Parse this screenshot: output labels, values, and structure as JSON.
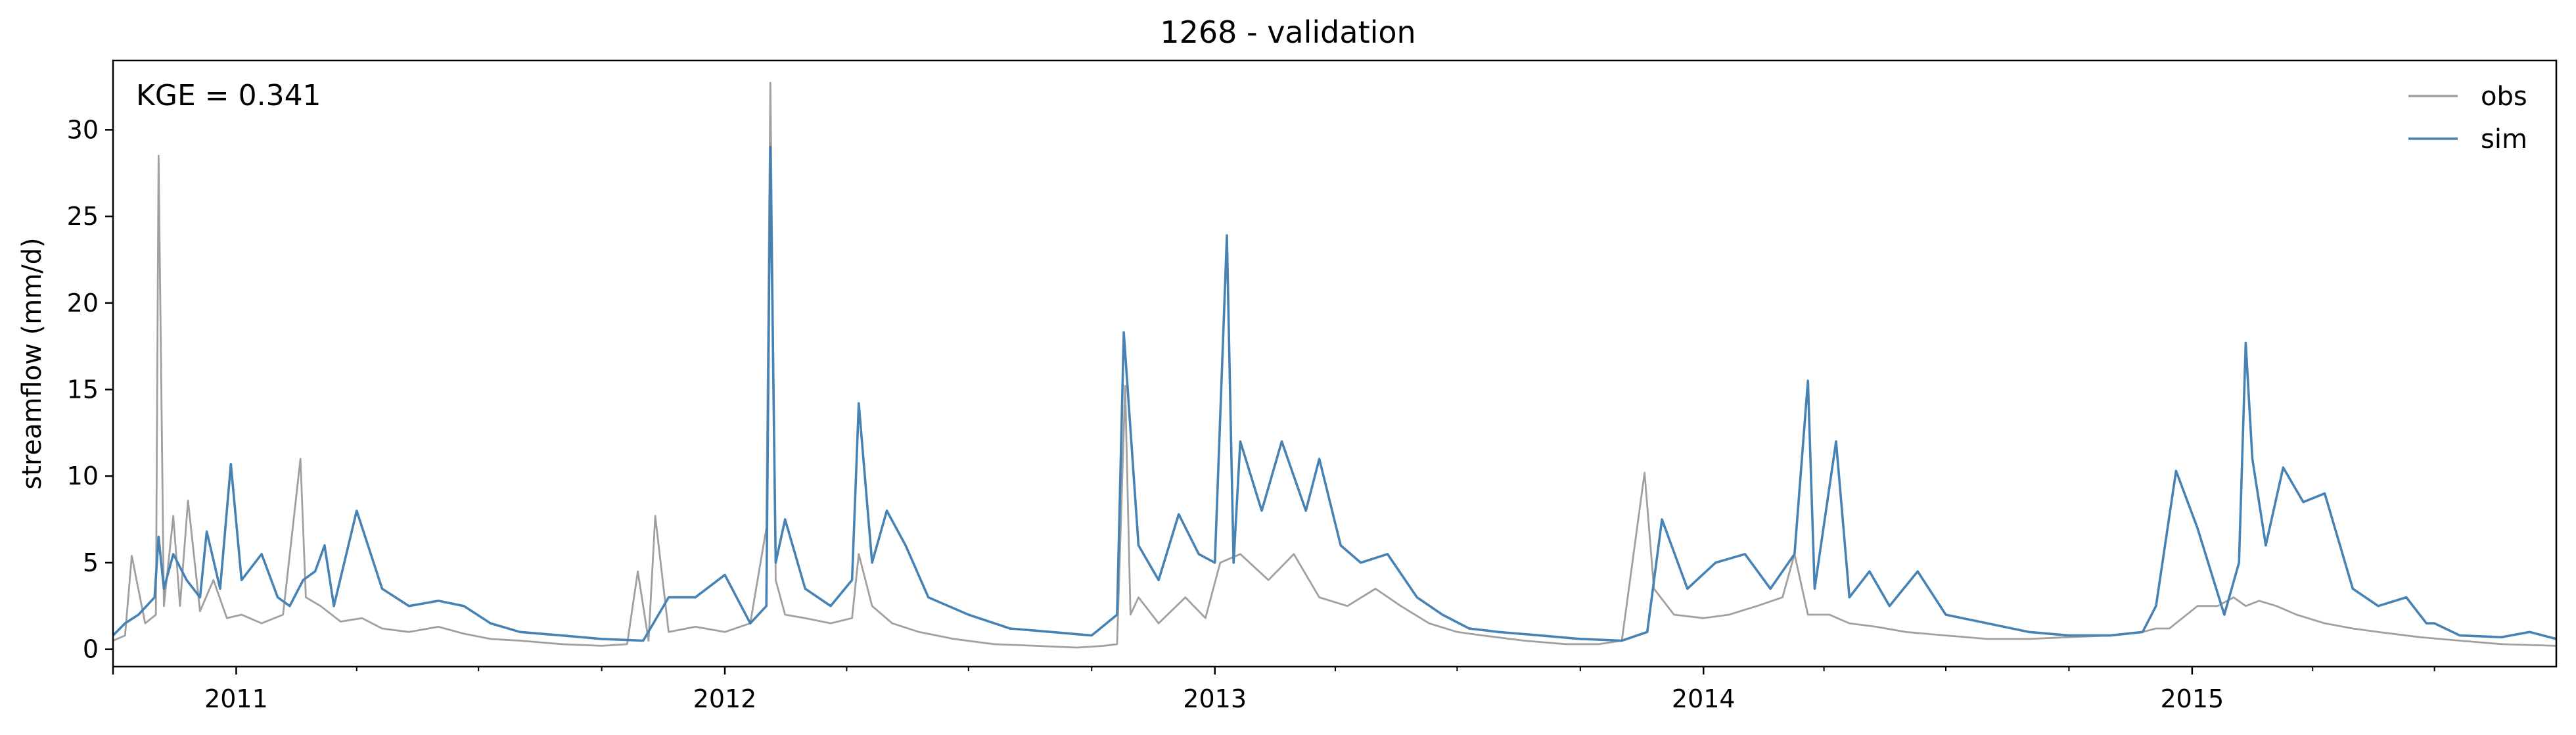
{
  "chart_data": {
    "type": "line",
    "title": "1268 - validation",
    "xlabel": "",
    "ylabel": "streamflow (mm/d)",
    "annotation": "KGE = 0.341",
    "xlim": [
      "2010-10-01",
      "2015-09-30"
    ],
    "ylim": [
      -1,
      34
    ],
    "yticks": [
      0,
      5,
      10,
      15,
      20,
      25,
      30
    ],
    "xticks": [
      {
        "date": "2011-01-01",
        "label": "2011"
      },
      {
        "date": "2012-01-01",
        "label": "2012"
      },
      {
        "date": "2013-01-01",
        "label": "2013"
      },
      {
        "date": "2014-01-01",
        "label": "2014"
      },
      {
        "date": "2015-01-01",
        "label": "2015"
      }
    ],
    "legend": "upper-right",
    "grid": false,
    "series": [
      {
        "name": "obs",
        "color": "#a0a0a0",
        "x": [
          "2010-10-01",
          "2010-10-10",
          "2010-10-15",
          "2010-10-25",
          "2010-11-02",
          "2010-11-04",
          "2010-11-08",
          "2010-11-15",
          "2010-11-20",
          "2010-11-26",
          "2010-12-05",
          "2010-12-15",
          "2010-12-25",
          "2011-01-05",
          "2011-01-20",
          "2011-02-05",
          "2011-02-18",
          "2011-02-22",
          "2011-03-05",
          "2011-03-20",
          "2011-04-05",
          "2011-04-20",
          "2011-05-10",
          "2011-06-01",
          "2011-06-20",
          "2011-07-10",
          "2011-08-01",
          "2011-09-01",
          "2011-10-01",
          "2011-10-20",
          "2011-10-28",
          "2011-11-05",
          "2011-11-10",
          "2011-11-20",
          "2011-12-10",
          "2012-01-01",
          "2012-01-20",
          "2012-02-01",
          "2012-02-04",
          "2012-02-08",
          "2012-02-15",
          "2012-03-01",
          "2012-03-20",
          "2012-04-05",
          "2012-04-10",
          "2012-04-20",
          "2012-05-05",
          "2012-05-25",
          "2012-06-20",
          "2012-07-20",
          "2012-08-20",
          "2012-09-20",
          "2012-10-10",
          "2012-10-20",
          "2012-10-26",
          "2012-10-30",
          "2012-11-05",
          "2012-11-20",
          "2012-12-10",
          "2012-12-25",
          "2013-01-05",
          "2013-01-20",
          "2013-02-10",
          "2013-03-01",
          "2013-03-20",
          "2013-04-10",
          "2013-05-01",
          "2013-05-20",
          "2013-06-10",
          "2013-07-01",
          "2013-07-20",
          "2013-08-20",
          "2013-09-20",
          "2013-10-15",
          "2013-11-01",
          "2013-11-18",
          "2013-11-25",
          "2013-12-10",
          "2014-01-01",
          "2014-01-20",
          "2014-02-10",
          "2014-03-01",
          "2014-03-10",
          "2014-03-20",
          "2014-04-05",
          "2014-04-20",
          "2014-05-10",
          "2014-06-01",
          "2014-07-01",
          "2014-08-01",
          "2014-09-01",
          "2014-10-01",
          "2014-11-01",
          "2014-11-25",
          "2014-12-05",
          "2014-12-15",
          "2015-01-05",
          "2015-01-20",
          "2015-02-01",
          "2015-02-10",
          "2015-02-20",
          "2015-03-05",
          "2015-03-20",
          "2015-04-10",
          "2015-05-01",
          "2015-05-20",
          "2015-06-20",
          "2015-07-20",
          "2015-08-20",
          "2015-09-30"
        ],
        "y": [
          0.5,
          0.8,
          5.4,
          1.5,
          2.0,
          28.5,
          2.5,
          7.7,
          2.5,
          8.6,
          2.2,
          4.0,
          1.8,
          2.0,
          1.5,
          2.0,
          11.0,
          3.0,
          2.5,
          1.6,
          1.8,
          1.2,
          1.0,
          1.3,
          0.9,
          0.6,
          0.5,
          0.3,
          0.2,
          0.3,
          4.5,
          0.5,
          7.7,
          1.0,
          1.3,
          1.0,
          1.5,
          7.0,
          32.7,
          4.0,
          2.0,
          1.8,
          1.5,
          1.8,
          5.5,
          2.5,
          1.5,
          1.0,
          0.6,
          0.3,
          0.2,
          0.1,
          0.2,
          0.3,
          15.2,
          2.0,
          3.0,
          1.5,
          3.0,
          1.8,
          5.0,
          5.5,
          4.0,
          5.5,
          3.0,
          2.5,
          3.5,
          2.5,
          1.5,
          1.0,
          0.8,
          0.5,
          0.3,
          0.3,
          0.5,
          10.2,
          3.5,
          2.0,
          1.8,
          2.0,
          2.5,
          3.0,
          5.5,
          2.0,
          2.0,
          1.5,
          1.3,
          1.0,
          0.8,
          0.6,
          0.6,
          0.7,
          0.8,
          1.0,
          1.2,
          1.2,
          2.5,
          2.5,
          3.0,
          2.5,
          2.8,
          2.5,
          2.0,
          1.5,
          1.2,
          1.0,
          0.7,
          0.5,
          0.3,
          0.2
        ]
      },
      {
        "name": "sim",
        "color": "#4682b4",
        "x": [
          "2010-10-01",
          "2010-10-10",
          "2010-10-20",
          "2010-11-01",
          "2010-11-04",
          "2010-11-08",
          "2010-11-15",
          "2010-11-25",
          "2010-12-05",
          "2010-12-10",
          "2010-12-20",
          "2010-12-28",
          "2011-01-05",
          "2011-01-20",
          "2011-02-01",
          "2011-02-10",
          "2011-02-20",
          "2011-03-01",
          "2011-03-08",
          "2011-03-15",
          "2011-04-01",
          "2011-04-20",
          "2011-05-10",
          "2011-06-01",
          "2011-06-20",
          "2011-07-10",
          "2011-08-01",
          "2011-09-01",
          "2011-10-01",
          "2011-11-01",
          "2011-11-20",
          "2011-12-10",
          "2012-01-01",
          "2012-01-20",
          "2012-02-01",
          "2012-02-04",
          "2012-02-08",
          "2012-02-15",
          "2012-03-01",
          "2012-03-20",
          "2012-04-05",
          "2012-04-10",
          "2012-04-20",
          "2012-05-01",
          "2012-05-15",
          "2012-06-01",
          "2012-07-01",
          "2012-08-01",
          "2012-09-01",
          "2012-10-01",
          "2012-10-20",
          "2012-10-25",
          "2012-11-05",
          "2012-11-20",
          "2012-12-05",
          "2012-12-20",
          "2013-01-01",
          "2013-01-10",
          "2013-01-15",
          "2013-01-20",
          "2013-02-05",
          "2013-02-20",
          "2013-03-10",
          "2013-03-20",
          "2013-04-05",
          "2013-04-20",
          "2013-05-10",
          "2013-06-01",
          "2013-06-20",
          "2013-07-10",
          "2013-08-01",
          "2013-09-01",
          "2013-10-01",
          "2013-11-01",
          "2013-11-20",
          "2013-12-01",
          "2013-12-20",
          "2014-01-10",
          "2014-02-01",
          "2014-02-20",
          "2014-03-10",
          "2014-03-20",
          "2014-03-25",
          "2014-04-10",
          "2014-04-20",
          "2014-05-05",
          "2014-05-20",
          "2014-06-10",
          "2014-07-01",
          "2014-08-01",
          "2014-09-01",
          "2014-10-01",
          "2014-11-01",
          "2014-11-25",
          "2014-12-05",
          "2014-12-20",
          "2015-01-05",
          "2015-01-25",
          "2015-02-05",
          "2015-02-10",
          "2015-02-15",
          "2015-02-25",
          "2015-03-10",
          "2015-03-25",
          "2015-04-10",
          "2015-05-01",
          "2015-05-20",
          "2015-06-10",
          "2015-06-25",
          "2015-07-01",
          "2015-07-20",
          "2015-08-20",
          "2015-09-10",
          "2015-09-30"
        ],
        "y": [
          0.8,
          1.5,
          2.0,
          3.0,
          6.5,
          3.5,
          5.5,
          4.0,
          3.0,
          6.8,
          3.5,
          10.7,
          4.0,
          5.5,
          3.0,
          2.5,
          4.0,
          4.5,
          6.0,
          2.5,
          8.0,
          3.5,
          2.5,
          2.8,
          2.5,
          1.5,
          1.0,
          0.8,
          0.6,
          0.5,
          3.0,
          3.0,
          4.3,
          1.5,
          2.5,
          29.0,
          5.0,
          7.5,
          3.5,
          2.5,
          4.0,
          14.2,
          5.0,
          8.0,
          6.0,
          3.0,
          2.0,
          1.2,
          1.0,
          0.8,
          2.0,
          18.3,
          6.0,
          4.0,
          7.8,
          5.5,
          5.0,
          23.9,
          5.0,
          12.0,
          8.0,
          12.0,
          8.0,
          11.0,
          6.0,
          5.0,
          5.5,
          3.0,
          2.0,
          1.2,
          1.0,
          0.8,
          0.6,
          0.5,
          1.0,
          7.5,
          3.5,
          5.0,
          5.5,
          3.5,
          5.5,
          15.5,
          3.5,
          12.0,
          3.0,
          4.5,
          2.5,
          4.5,
          2.0,
          1.5,
          1.0,
          0.8,
          0.8,
          1.0,
          2.5,
          10.3,
          7.0,
          2.0,
          5.0,
          17.7,
          11.0,
          6.0,
          10.5,
          8.5,
          9.0,
          3.5,
          2.5,
          3.0,
          1.5,
          1.5,
          0.8,
          0.7,
          1.0,
          0.6
        ]
      }
    ]
  }
}
